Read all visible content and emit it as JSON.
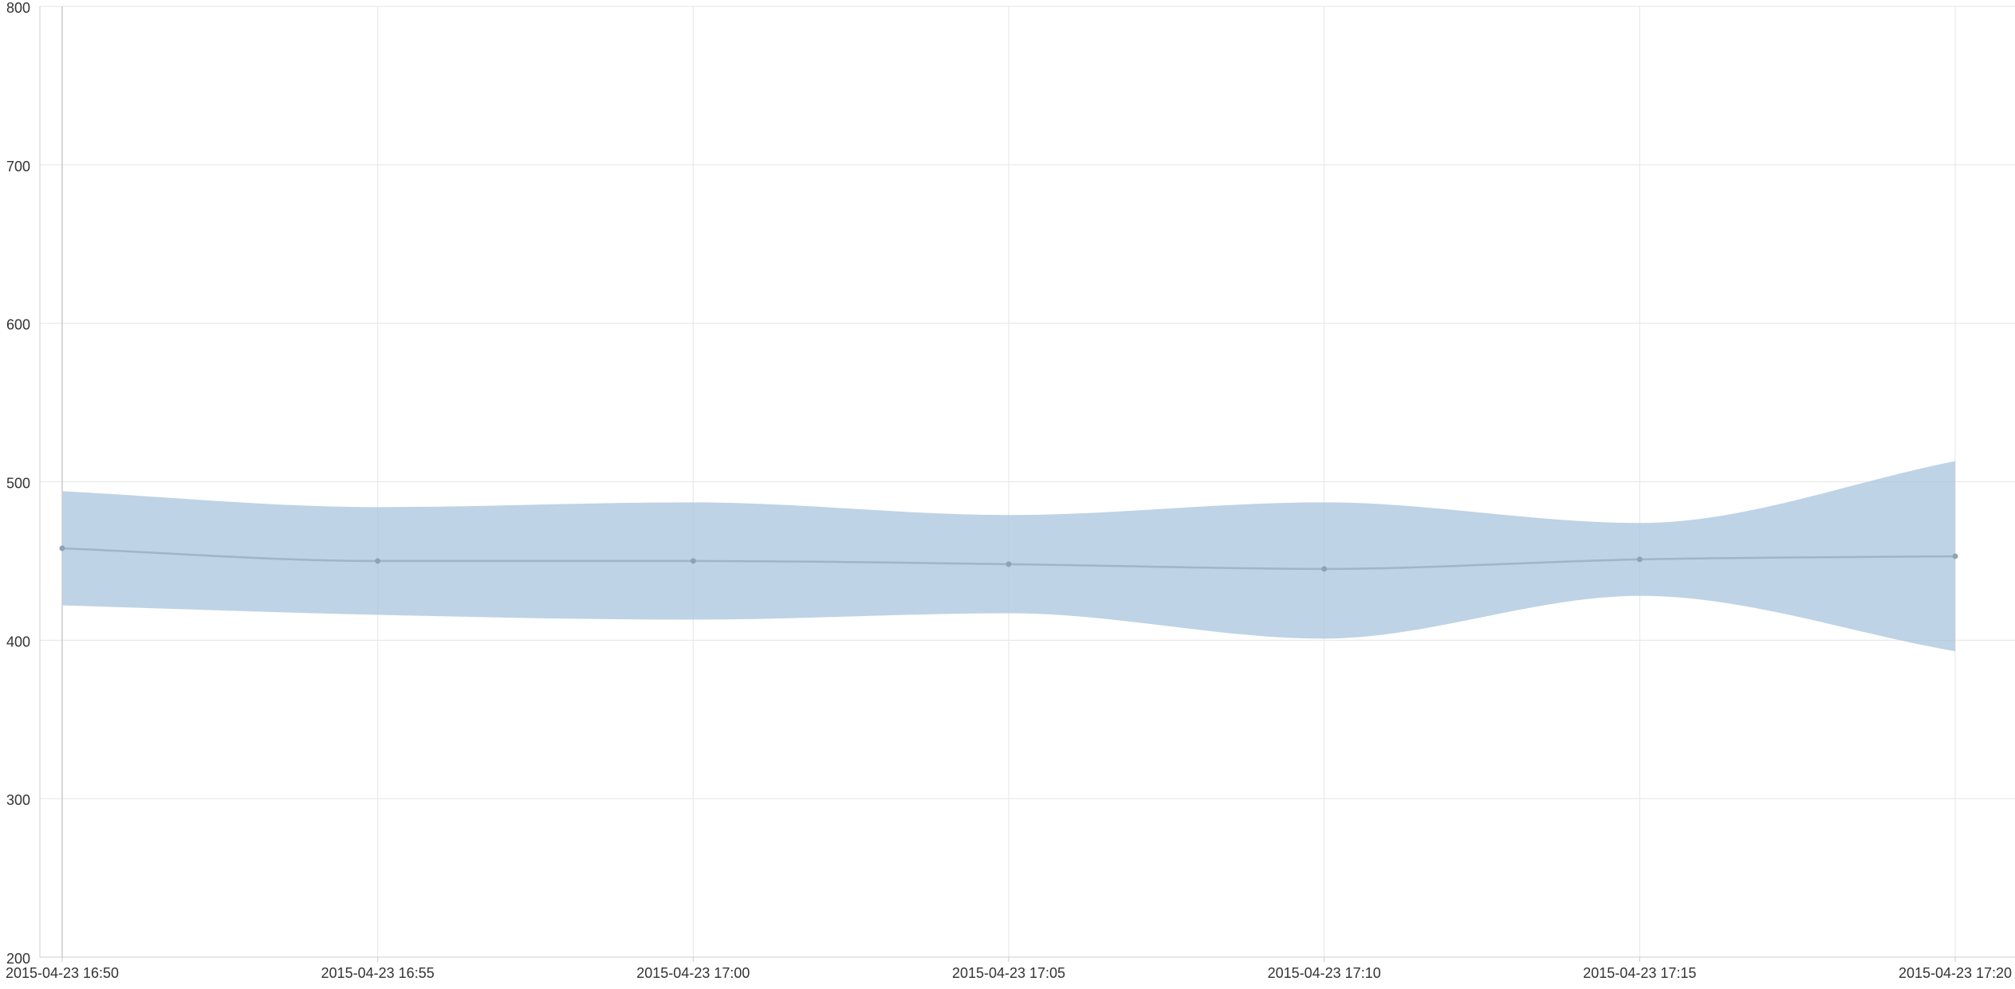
{
  "chart_data": {
    "type": "area",
    "title": "",
    "xlabel": "",
    "ylabel": "",
    "x": [
      "2015-04-23 16:50",
      "2015-04-23 16:55",
      "2015-04-23 17:00",
      "2015-04-23 17:05",
      "2015-04-23 17:10",
      "2015-04-23 17:15",
      "2015-04-23 17:20"
    ],
    "x_tick_labels": [
      "2015-04-23 16:50",
      "2015-04-23 16:55",
      "2015-04-23 17:00",
      "2015-04-23 17:05",
      "2015-04-23 17:10",
      "2015-04-23 17:15",
      "2015-04-23 17:20"
    ],
    "y_tick_labels": [
      "200",
      "300",
      "400",
      "500",
      "600",
      "700",
      "800"
    ],
    "ylim": [
      200,
      800
    ],
    "grid": true,
    "series": [
      {
        "role": "line",
        "values": [
          458,
          450,
          450,
          448,
          445,
          451,
          453
        ]
      },
      {
        "role": "band",
        "upper": [
          494,
          484,
          487,
          479,
          487,
          474,
          513
        ],
        "lower": [
          422,
          416,
          413,
          417,
          401,
          428,
          393
        ]
      }
    ],
    "colors": {
      "band": "#a8c4dc",
      "line": "#9eb6c8",
      "point": "#8fa3b2",
      "grid": "#e6e6e6",
      "axis": "#cccccc",
      "tick_text": "#333333"
    }
  }
}
